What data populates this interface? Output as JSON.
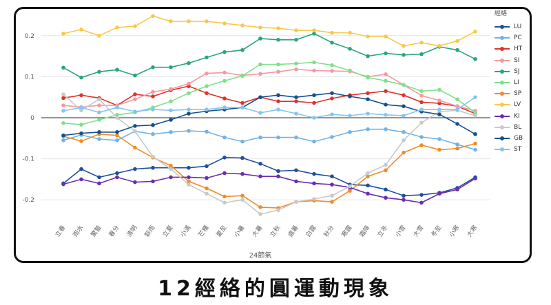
{
  "caption": "12經絡的圓運動現象",
  "chart_data": {
    "type": "line",
    "xlabel": "24節氣",
    "legend_title": "經絡",
    "ylim": [
      -0.25,
      0.25
    ],
    "y_ticks": [
      -0.2,
      -0.1,
      0,
      0.1,
      0.2
    ],
    "categories": [
      "立春",
      "雨水",
      "驚蟄",
      "春分",
      "清明",
      "穀雨",
      "立夏",
      "小滿",
      "芒種",
      "夏至",
      "小暑",
      "大暑",
      "立秋",
      "處暑",
      "白露",
      "秋分",
      "寒露",
      "霜降",
      "立冬",
      "小雪",
      "大雪",
      "冬至",
      "小寒",
      "大寒"
    ],
    "series": [
      {
        "name": "LU",
        "color": "#1f4e9c",
        "values": [
          -0.16,
          -0.125,
          -0.145,
          -0.135,
          -0.125,
          -0.122,
          -0.122,
          -0.122,
          -0.118,
          -0.097,
          -0.098,
          -0.112,
          -0.13,
          -0.128,
          -0.137,
          -0.143,
          -0.163,
          -0.165,
          -0.175,
          -0.19,
          -0.188,
          -0.183,
          -0.171,
          -0.145
        ]
      },
      {
        "name": "PC",
        "color": "#6fb3e8",
        "values": [
          -0.055,
          -0.042,
          -0.052,
          -0.055,
          -0.033,
          -0.04,
          -0.035,
          -0.032,
          -0.034,
          -0.048,
          -0.058,
          -0.048,
          -0.048,
          -0.048,
          -0.058,
          -0.047,
          -0.035,
          -0.028,
          -0.028,
          -0.035,
          -0.047,
          -0.052,
          -0.065,
          -0.078
        ]
      },
      {
        "name": "HT",
        "color": "#e0312a",
        "values": [
          0.048,
          0.055,
          0.048,
          0.03,
          0.057,
          0.052,
          0.067,
          0.077,
          0.06,
          0.047,
          0.036,
          0.05,
          0.04,
          0.04,
          0.036,
          0.047,
          0.055,
          0.06,
          0.065,
          0.055,
          0.038,
          0.035,
          0.028,
          0.01
        ]
      },
      {
        "name": "SI",
        "color": "#f29aa0",
        "values": [
          0.03,
          0.026,
          0.03,
          0.03,
          0.045,
          0.063,
          0.07,
          0.083,
          0.108,
          0.11,
          0.103,
          0.107,
          0.112,
          0.118,
          0.115,
          0.114,
          0.113,
          0.1,
          0.106,
          0.08,
          0.054,
          0.042,
          0.028,
          0.017
        ]
      },
      {
        "name": "SJ",
        "color": "#2aa57a",
        "values": [
          0.122,
          0.098,
          0.112,
          0.117,
          0.103,
          0.123,
          0.123,
          0.133,
          0.147,
          0.16,
          0.165,
          0.193,
          0.19,
          0.19,
          0.205,
          0.183,
          0.168,
          0.15,
          0.157,
          0.153,
          0.155,
          0.173,
          0.165,
          0.143
        ]
      },
      {
        "name": "LI",
        "color": "#7fe08a",
        "values": [
          -0.013,
          -0.017,
          -0.005,
          0.007,
          0.013,
          0.025,
          0.04,
          0.06,
          0.077,
          0.09,
          0.102,
          0.13,
          0.13,
          0.132,
          0.135,
          0.128,
          0.115,
          0.098,
          0.09,
          0.08,
          0.065,
          0.068,
          0.045,
          0.012
        ]
      },
      {
        "name": "SP",
        "color": "#f08c28",
        "values": [
          -0.045,
          -0.057,
          -0.04,
          -0.043,
          -0.073,
          -0.097,
          -0.117,
          -0.155,
          -0.172,
          -0.192,
          -0.19,
          -0.218,
          -0.22,
          -0.205,
          -0.202,
          -0.205,
          -0.178,
          -0.143,
          -0.128,
          -0.085,
          -0.067,
          -0.078,
          -0.075,
          -0.063
        ]
      },
      {
        "name": "LV",
        "color": "#f7c948",
        "values": [
          0.205,
          0.215,
          0.2,
          0.22,
          0.223,
          0.248,
          0.235,
          0.235,
          0.235,
          0.23,
          0.225,
          0.22,
          0.218,
          0.213,
          0.213,
          0.207,
          0.207,
          0.198,
          0.198,
          0.175,
          0.183,
          0.175,
          0.187,
          0.21
        ]
      },
      {
        "name": "KI",
        "color": "#6a2db0",
        "values": [
          -0.162,
          -0.15,
          -0.16,
          -0.145,
          -0.157,
          -0.155,
          -0.145,
          -0.145,
          -0.147,
          -0.135,
          -0.137,
          -0.143,
          -0.143,
          -0.155,
          -0.16,
          -0.163,
          -0.17,
          -0.185,
          -0.195,
          -0.2,
          -0.207,
          -0.185,
          -0.175,
          -0.148
        ]
      },
      {
        "name": "BL",
        "color": "#c9c9c9",
        "values": [
          0.057,
          0.018,
          0.045,
          0.0,
          -0.033,
          -0.095,
          -0.125,
          -0.163,
          -0.185,
          -0.207,
          -0.2,
          -0.235,
          -0.225,
          -0.205,
          -0.198,
          -0.19,
          -0.167,
          -0.135,
          -0.115,
          -0.055,
          -0.012,
          0.015,
          0.018,
          0.005
        ]
      },
      {
        "name": "GB",
        "color": "#15508c",
        "values": [
          -0.043,
          -0.038,
          -0.035,
          -0.035,
          -0.02,
          -0.018,
          -0.005,
          0.01,
          0.016,
          0.02,
          0.025,
          0.05,
          0.055,
          0.05,
          0.055,
          0.06,
          0.052,
          0.045,
          0.032,
          0.028,
          0.015,
          0.008,
          -0.015,
          -0.04
        ]
      },
      {
        "name": "ST",
        "color": "#84c4f0",
        "values": [
          0.017,
          0.025,
          0.013,
          0.025,
          0.015,
          0.02,
          0.018,
          0.02,
          0.02,
          0.025,
          0.025,
          0.012,
          0.02,
          0.01,
          0.0,
          0.008,
          0.005,
          0.01,
          0.007,
          0.005,
          0.02,
          0.02,
          0.02,
          0.05
        ]
      }
    ]
  }
}
